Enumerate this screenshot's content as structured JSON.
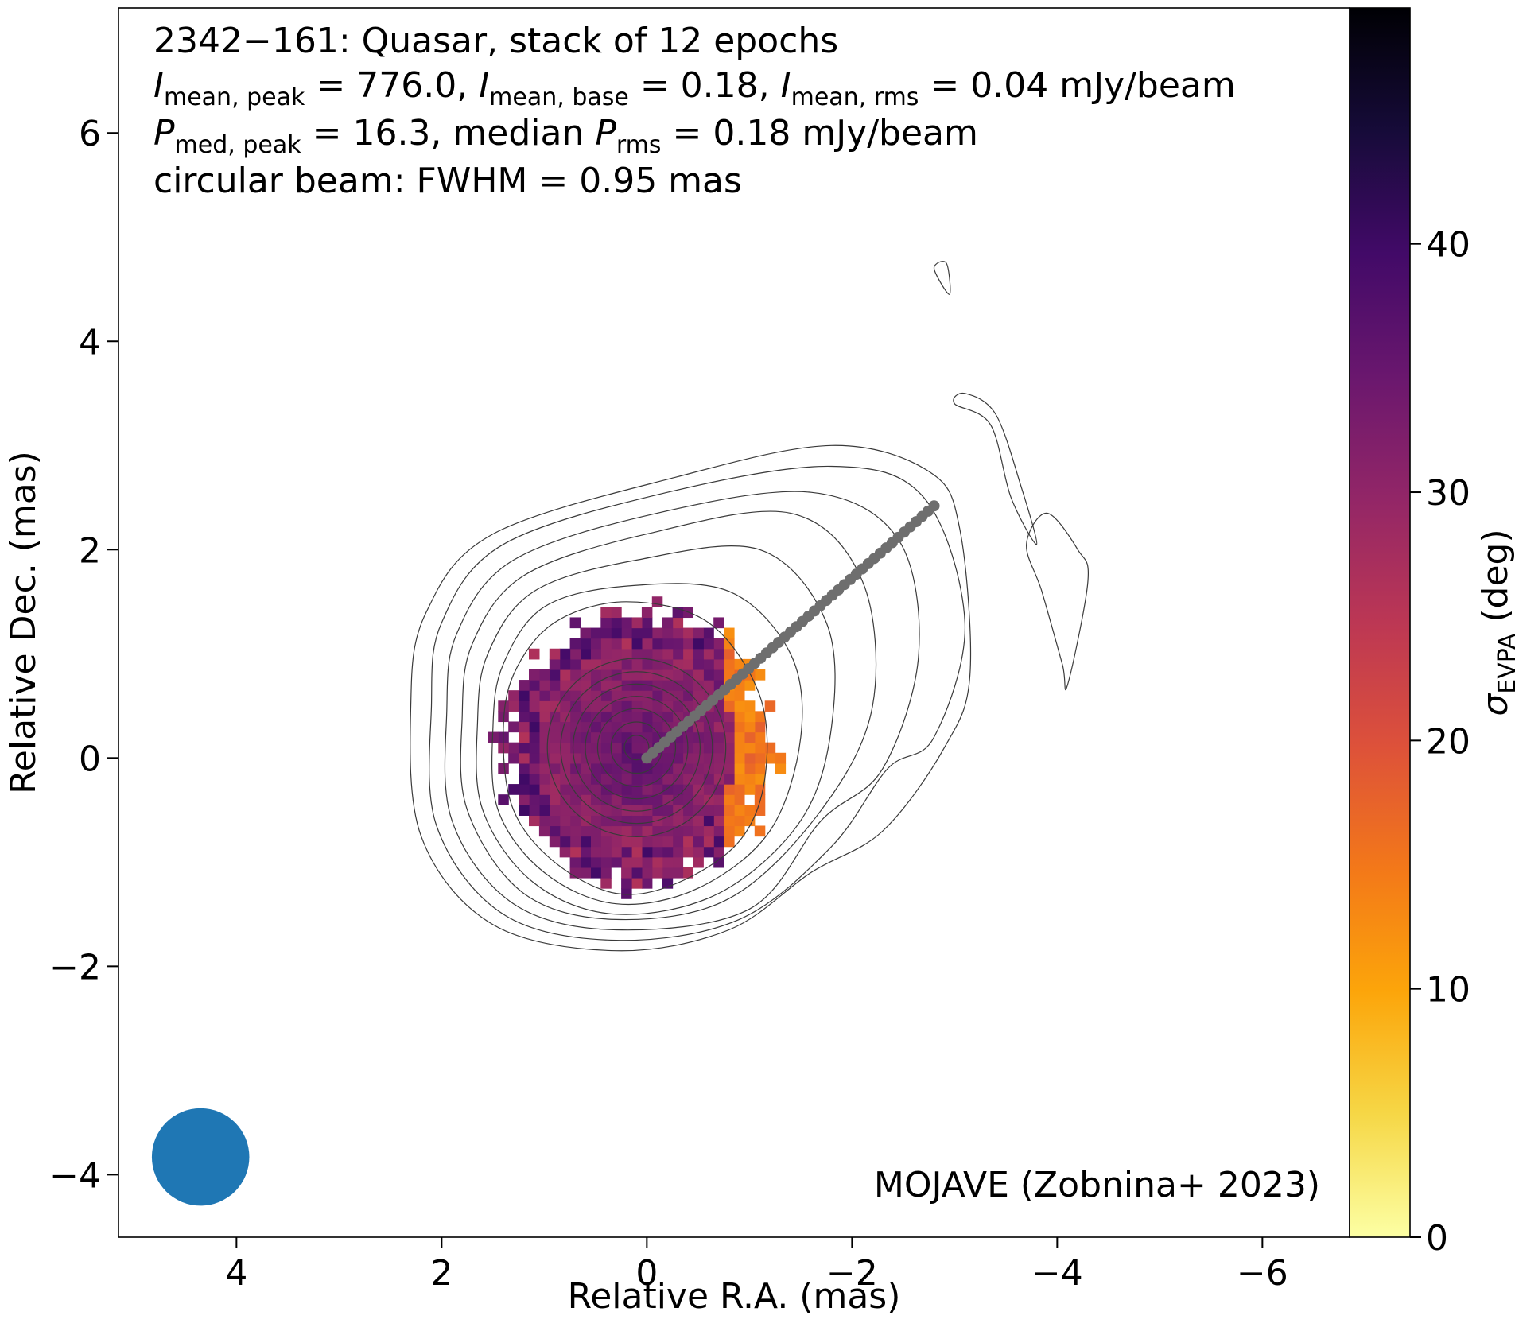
{
  "chart_data": {
    "type": "heatmap",
    "info_lines": [
      {
        "segments": [
          {
            "t": "2342−161: Quasar, stack of 12 epochs"
          }
        ]
      },
      {
        "segments": [
          {
            "t": "I",
            "style": "italic"
          },
          {
            "t": "mean, peak",
            "style": "sub"
          },
          {
            "t": " = 776.0, "
          },
          {
            "t": "I",
            "style": "italic"
          },
          {
            "t": "mean, base",
            "style": "sub"
          },
          {
            "t": " = 0.18, "
          },
          {
            "t": "I",
            "style": "italic"
          },
          {
            "t": "mean, rms",
            "style": "sub"
          },
          {
            "t": " = 0.04 mJy/beam"
          }
        ]
      },
      {
        "segments": [
          {
            "t": "P",
            "style": "italic"
          },
          {
            "t": "med, peak",
            "style": "sub"
          },
          {
            "t": " = 16.3, median "
          },
          {
            "t": "P",
            "style": "italic"
          },
          {
            "t": "rms",
            "style": "sub"
          },
          {
            "t": " = 0.18 mJy/beam"
          }
        ]
      },
      {
        "segments": [
          {
            "t": "circular beam: FWHM = 0.95 mas"
          }
        ]
      }
    ],
    "credit": "MOJAVE (Zobnina+ 2023)",
    "xlabel": "Relative R.A. (mas)",
    "ylabel": "Relative Dec. (mas)",
    "xlim": [
      5.15,
      -6.85
    ],
    "ylim": [
      -4.6,
      7.2
    ],
    "x_ticks": [
      {
        "v": 4,
        "label": "4"
      },
      {
        "v": 2,
        "label": "2"
      },
      {
        "v": 0,
        "label": "0"
      },
      {
        "v": -2,
        "label": "−2"
      },
      {
        "v": -4,
        "label": "−4"
      },
      {
        "v": -6,
        "label": "−6"
      }
    ],
    "y_ticks": [
      {
        "v": -4,
        "label": "−4"
      },
      {
        "v": -2,
        "label": "−2"
      },
      {
        "v": 0,
        "label": "0"
      },
      {
        "v": 2,
        "label": "2"
      },
      {
        "v": 4,
        "label": "4"
      },
      {
        "v": 6,
        "label": "6"
      }
    ],
    "colorbar": {
      "label_main": "σ",
      "label_sub": "EVPA",
      "label_unit": " (deg)",
      "range": [
        0,
        49.5
      ],
      "colormap": "inferno_r",
      "ticks": [
        {
          "v": 0,
          "label": "0"
        },
        {
          "v": 10,
          "label": "10"
        },
        {
          "v": 20,
          "label": "20"
        },
        {
          "v": 30,
          "label": "30"
        },
        {
          "v": 40,
          "label": "40"
        }
      ]
    },
    "map": {
      "grid_spacing_mas": 0.1,
      "pixel_size_mas": 0.1,
      "extent_radius_mas": 1.35,
      "center": [
        0.1,
        0.1
      ],
      "center_value": 36,
      "core_radius_mas": 0.95,
      "edge_low_side": "west",
      "edge_low_value": 12
    },
    "contours": {
      "core_center": [
        0.1,
        0.1
      ],
      "radii_mas": [
        0.12,
        0.25,
        0.38,
        0.5,
        0.62,
        0.74,
        0.87
      ],
      "outer": [
        [
          [
            1.4,
            0.2
          ],
          [
            1.3,
            0.8
          ],
          [
            0.9,
            1.3
          ],
          [
            0.2,
            1.5
          ],
          [
            -0.6,
            1.3
          ],
          [
            -1.1,
            0.6
          ],
          [
            -1.15,
            -0.2
          ],
          [
            -0.9,
            -0.8
          ],
          [
            -0.3,
            -1.2
          ],
          [
            0.3,
            -1.3
          ],
          [
            0.9,
            -1.0
          ],
          [
            1.3,
            -0.5
          ]
        ],
        [
          [
            1.5,
            0.3
          ],
          [
            1.4,
            0.9
          ],
          [
            1.0,
            1.45
          ],
          [
            0.2,
            1.65
          ],
          [
            -0.8,
            1.6
          ],
          [
            -1.4,
            1.0
          ],
          [
            -1.5,
            0.2
          ],
          [
            -1.2,
            -0.7
          ],
          [
            -0.5,
            -1.25
          ],
          [
            0.3,
            -1.4
          ],
          [
            1.0,
            -1.1
          ],
          [
            1.45,
            -0.5
          ]
        ],
        [
          [
            1.65,
            0.35
          ],
          [
            1.55,
            1.0
          ],
          [
            1.1,
            1.6
          ],
          [
            0.1,
            1.9
          ],
          [
            -1.1,
            2.0
          ],
          [
            -1.75,
            1.3
          ],
          [
            -1.8,
            0.3
          ],
          [
            -1.5,
            -0.6
          ],
          [
            -0.7,
            -1.3
          ],
          [
            0.3,
            -1.5
          ],
          [
            1.1,
            -1.2
          ],
          [
            1.6,
            -0.5
          ]
        ],
        [
          [
            1.8,
            0.4
          ],
          [
            1.7,
            1.1
          ],
          [
            1.2,
            1.75
          ],
          [
            0.0,
            2.15
          ],
          [
            -1.4,
            2.35
          ],
          [
            -2.1,
            1.7
          ],
          [
            -2.2,
            0.5
          ],
          [
            -1.7,
            -0.5
          ],
          [
            -0.8,
            -1.35
          ],
          [
            0.3,
            -1.55
          ],
          [
            1.2,
            -1.3
          ],
          [
            1.75,
            -0.5
          ]
        ],
        [
          [
            1.95,
            0.45
          ],
          [
            1.85,
            1.2
          ],
          [
            1.3,
            1.9
          ],
          [
            -0.1,
            2.35
          ],
          [
            -1.6,
            2.55
          ],
          [
            -2.45,
            2.1
          ],
          [
            -2.65,
            1.0
          ],
          [
            -2.3,
            -0.1
          ],
          [
            -1.7,
            -0.6
          ],
          [
            -1.0,
            -1.45
          ],
          [
            0.3,
            -1.65
          ],
          [
            1.3,
            -1.4
          ],
          [
            1.9,
            -0.6
          ]
        ],
        [
          [
            2.1,
            0.5
          ],
          [
            2.0,
            1.3
          ],
          [
            1.4,
            2.05
          ],
          [
            -0.2,
            2.55
          ],
          [
            -1.8,
            2.8
          ],
          [
            -2.7,
            2.5
          ],
          [
            -3.1,
            1.3
          ],
          [
            -2.8,
            0.2
          ],
          [
            -2.35,
            -0.1
          ],
          [
            -1.8,
            -0.85
          ],
          [
            -0.9,
            -1.55
          ],
          [
            0.3,
            -1.75
          ],
          [
            1.4,
            -1.5
          ],
          [
            2.05,
            -0.65
          ]
        ],
        [
          [
            2.3,
            0.55
          ],
          [
            2.15,
            1.4
          ],
          [
            1.5,
            2.15
          ],
          [
            -0.3,
            2.7
          ],
          [
            -1.8,
            3.0
          ],
          [
            -2.75,
            2.75
          ],
          [
            -3.05,
            2.2
          ],
          [
            -3.15,
            0.8
          ],
          [
            -2.9,
            0.1
          ],
          [
            -2.3,
            -0.7
          ],
          [
            -1.6,
            -1.1
          ],
          [
            -0.8,
            -1.65
          ],
          [
            0.3,
            -1.85
          ],
          [
            1.5,
            -1.6
          ],
          [
            2.2,
            -0.75
          ]
        ]
      ],
      "islands": [
        [
          [
            -3.0,
            3.4
          ],
          [
            -3.35,
            3.2
          ],
          [
            -3.55,
            2.5
          ],
          [
            -3.8,
            2.05
          ],
          [
            -3.65,
            2.6
          ],
          [
            -3.4,
            3.3
          ],
          [
            -3.1,
            3.5
          ]
        ],
        [
          [
            -3.7,
            2.05
          ],
          [
            -3.85,
            1.6
          ],
          [
            -4.05,
            0.9
          ],
          [
            -4.1,
            0.7
          ],
          [
            -4.3,
            1.7
          ],
          [
            -4.2,
            2.0
          ],
          [
            -3.9,
            2.35
          ]
        ],
        [
          [
            -2.8,
            4.7
          ],
          [
            -2.95,
            4.45
          ],
          [
            -2.92,
            4.75
          ]
        ]
      ]
    },
    "ridge_line": {
      "start": [
        0,
        0
      ],
      "end": [
        -2.8,
        2.42
      ],
      "n_points": 49,
      "color": "#6e6e6e"
    },
    "beam": {
      "center": [
        4.35,
        -3.83
      ],
      "fwhm_mas": 0.95,
      "color": "#1f77b4"
    }
  }
}
